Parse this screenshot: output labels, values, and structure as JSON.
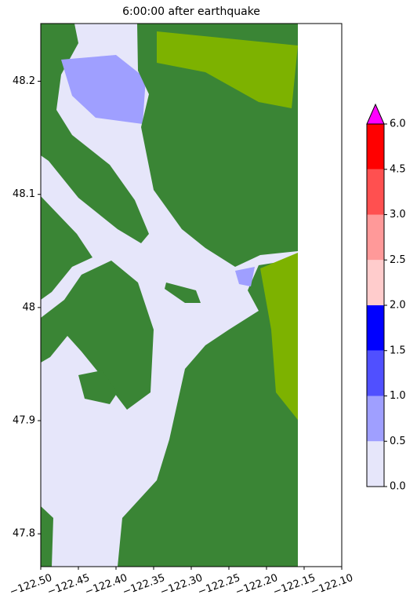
{
  "chart_data": {
    "type": "map",
    "title": "6:00:00 after earthquake",
    "xlim": [
      -122.5,
      -122.1
    ],
    "xticks": [
      {
        "value": -122.5,
        "label": "−122.50"
      },
      {
        "value": -122.45,
        "label": "−122.45"
      },
      {
        "value": -122.4,
        "label": "−122.40"
      },
      {
        "value": -122.35,
        "label": "−122.35"
      },
      {
        "value": -122.3,
        "label": "−122.30"
      },
      {
        "value": -122.25,
        "label": "−122.25"
      },
      {
        "value": -122.2,
        "label": "−122.20"
      },
      {
        "value": -122.15,
        "label": "−122.15"
      },
      {
        "value": -122.1,
        "label": "−122.10"
      }
    ],
    "ylim": [
      47.771,
      48.251
    ],
    "yticks": [
      47.8,
      47.9,
      48.0,
      48.1,
      48.2
    ],
    "colorbar": {
      "ticks": [
        {
          "value": 0,
          "label": "0.0"
        },
        0.5,
        {
          "value": 1,
          "label": "1.0"
        },
        1.5,
        {
          "value": 2,
          "label": "2.0"
        },
        2.5,
        {
          "value": 3,
          "label": "3.0"
        },
        4.5,
        {
          "value": 6,
          "label": "6.0"
        }
      ],
      "colors": [
        "#e6e6fa",
        "#9f9fff",
        "#5050ff",
        "#0000ff",
        "#ffcccc",
        "#ff9999",
        "#ff5050",
        "#ff0000"
      ],
      "extend_color": "#ff00ff"
    }
  }
}
